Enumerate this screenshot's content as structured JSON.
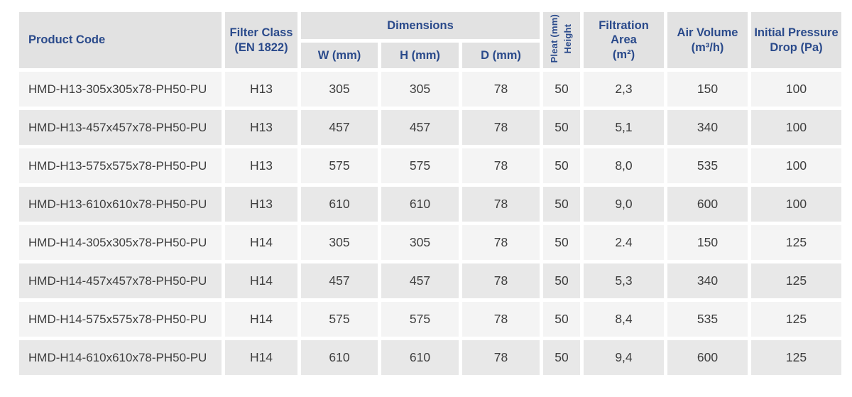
{
  "table": {
    "header": {
      "product_code": "Product Code",
      "filter_class": "Filter Class\n(EN 1822)",
      "dimensions": "Dimensions",
      "w": "W (mm)",
      "h": "H (mm)",
      "d": "D (mm)",
      "pleat_height": "Pleat (mm)\nHeight",
      "filtration_area": "Filtration\nArea\n(m²)",
      "air_volume": "Air Volume\n(m³/h)",
      "initial_pressure_drop": "Initial Pressure\nDrop (Pa)"
    },
    "column_order": [
      "product_code",
      "filter_class",
      "w",
      "h",
      "d",
      "pleat_height",
      "filtration_area",
      "air_volume",
      "initial_pressure_drop"
    ],
    "rows": [
      {
        "product_code": "HMD-H13-305x305x78-PH50-PU",
        "filter_class": "H13",
        "w": "305",
        "h": "305",
        "d": "78",
        "pleat_height": "50",
        "filtration_area": "2,3",
        "air_volume": "150",
        "initial_pressure_drop": "100"
      },
      {
        "product_code": "HMD-H13-457x457x78-PH50-PU",
        "filter_class": "H13",
        "w": "457",
        "h": "457",
        "d": "78",
        "pleat_height": "50",
        "filtration_area": "5,1",
        "air_volume": "340",
        "initial_pressure_drop": "100"
      },
      {
        "product_code": "HMD-H13-575x575x78-PH50-PU",
        "filter_class": "H13",
        "w": "575",
        "h": "575",
        "d": "78",
        "pleat_height": "50",
        "filtration_area": "8,0",
        "air_volume": "535",
        "initial_pressure_drop": "100"
      },
      {
        "product_code": "HMD-H13-610x610x78-PH50-PU",
        "filter_class": "H13",
        "w": "610",
        "h": "610",
        "d": "78",
        "pleat_height": "50",
        "filtration_area": "9,0",
        "air_volume": "600",
        "initial_pressure_drop": "100"
      },
      {
        "product_code": "HMD-H14-305x305x78-PH50-PU",
        "filter_class": "H14",
        "w": "305",
        "h": "305",
        "d": "78",
        "pleat_height": "50",
        "filtration_area": "2.4",
        "air_volume": "150",
        "initial_pressure_drop": "125"
      },
      {
        "product_code": "HMD-H14-457x457x78-PH50-PU",
        "filter_class": "H14",
        "w": "457",
        "h": "457",
        "d": "78",
        "pleat_height": "50",
        "filtration_area": "5,3",
        "air_volume": "340",
        "initial_pressure_drop": "125"
      },
      {
        "product_code": "HMD-H14-575x575x78-PH50-PU",
        "filter_class": "H14",
        "w": "575",
        "h": "575",
        "d": "78",
        "pleat_height": "50",
        "filtration_area": "8,4",
        "air_volume": "535",
        "initial_pressure_drop": "125"
      },
      {
        "product_code": "HMD-H14-610x610x78-PH50-PU",
        "filter_class": "H14",
        "w": "610",
        "h": "610",
        "d": "78",
        "pleat_height": "50",
        "filtration_area": "9,4",
        "air_volume": "600",
        "initial_pressure_drop": "125"
      }
    ]
  },
  "colors": {
    "header_text": "#2a4a8b",
    "header_bg": "#e2e2e2",
    "row_odd_bg": "#f4f4f4",
    "row_even_bg": "#e8e8e8",
    "data_text": "#3e3e3e"
  }
}
